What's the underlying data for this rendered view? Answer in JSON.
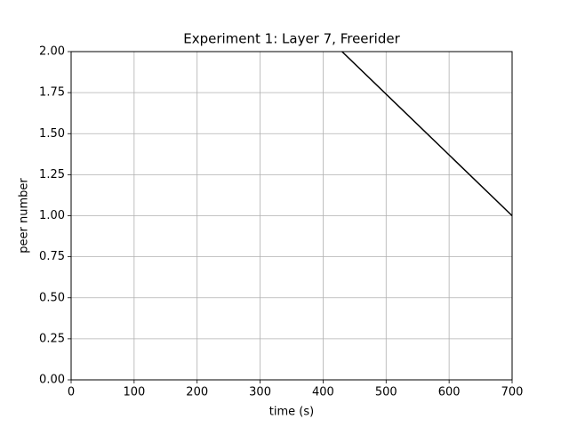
{
  "chart_data": {
    "type": "line",
    "title": "Experiment 1: Layer 7, Freerider",
    "xlabel": "time (s)",
    "ylabel": "peer number",
    "x": [
      430,
      700
    ],
    "series": [
      {
        "name": null,
        "color": "#000000",
        "values": [
          2.0,
          1.0
        ]
      }
    ],
    "xlim": [
      0,
      700
    ],
    "xticks": [
      0,
      100,
      200,
      300,
      400,
      500,
      600,
      700
    ],
    "ylim": [
      0,
      2
    ],
    "yticks": [
      {
        "value": 0,
        "label": "0.00"
      },
      {
        "value": 0.25,
        "label": "0.25"
      },
      {
        "value": 0.5,
        "label": "0.50"
      },
      {
        "value": 0.75,
        "label": "0.75"
      },
      {
        "value": 1,
        "label": "1.00"
      },
      {
        "value": 1.25,
        "label": "1.25"
      },
      {
        "value": 1.5,
        "label": "1.50"
      },
      {
        "value": 1.75,
        "label": "1.75"
      },
      {
        "value": 2,
        "label": "2.00"
      }
    ],
    "grid": true
  }
}
